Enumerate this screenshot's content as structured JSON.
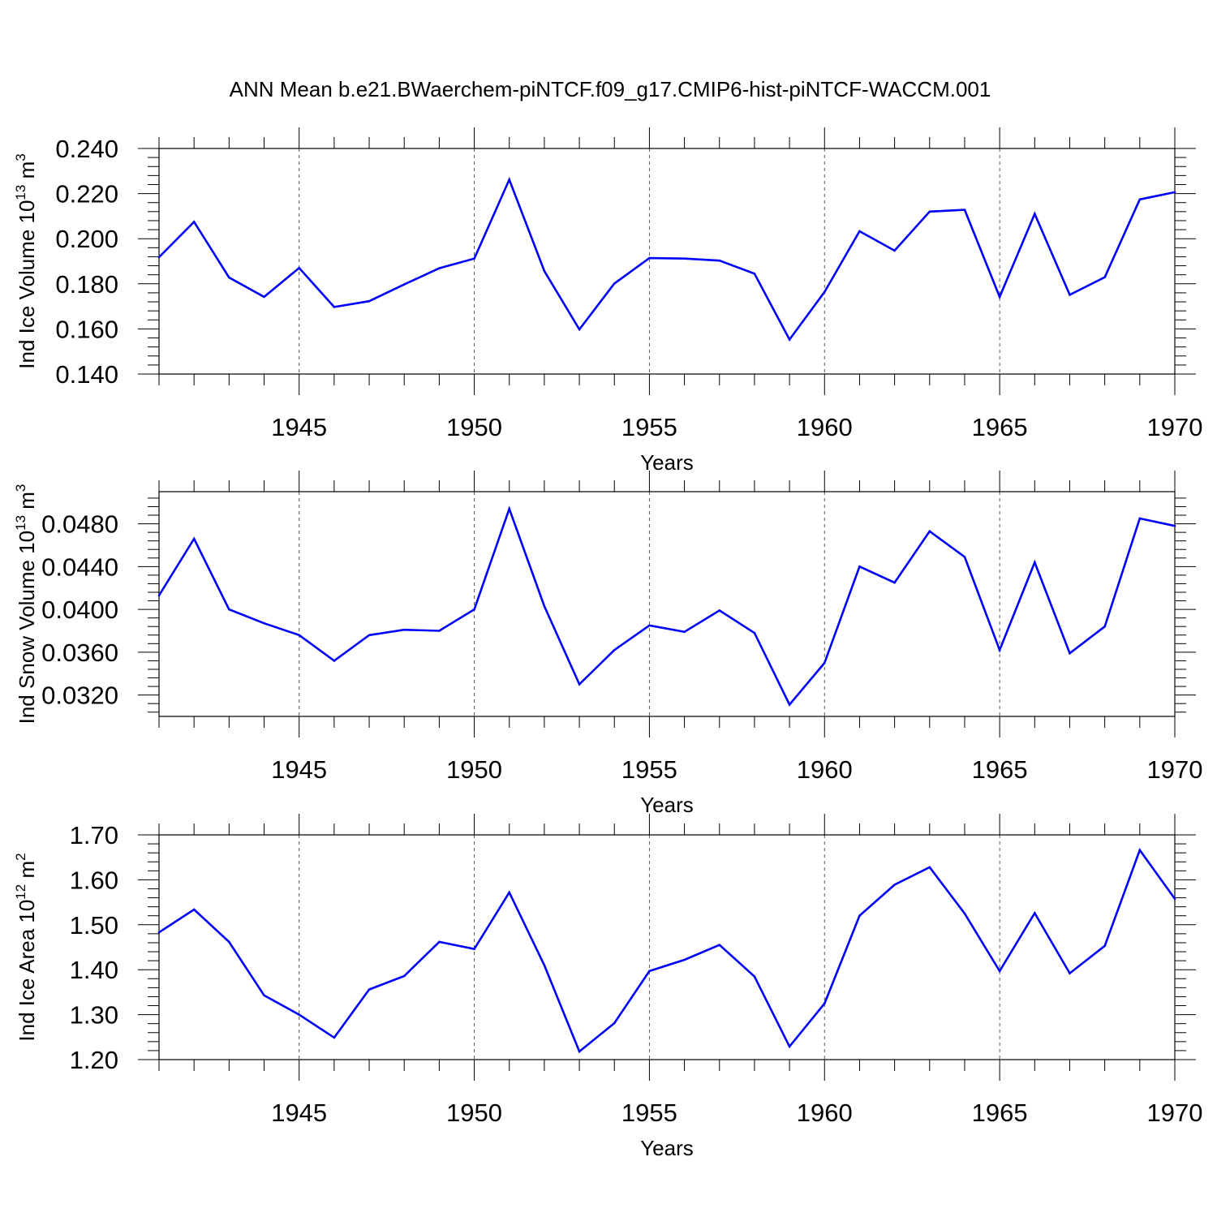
{
  "title": "ANN Mean b.e21.BWaerchem-piNTCF.f09_g17.CMIP6-hist-piNTCF-WACCM.001",
  "line_color": "#0000ff",
  "chart_data": [
    {
      "type": "line",
      "ylabel": "Ind Ice Volume 10",
      "ylabel_exp": "13",
      "ylabel_unit": " m",
      "ylabel_unit_exp": "3",
      "xlabel": "Years",
      "xlim": [
        1941,
        1970
      ],
      "ylim": [
        0.14,
        0.24
      ],
      "yticks": [
        0.14,
        0.16,
        0.18,
        0.2,
        0.22,
        0.24
      ],
      "ytick_labels": [
        "0.140",
        "0.160",
        "0.180",
        "0.200",
        "0.220",
        "0.240"
      ],
      "xticks": [
        1945,
        1950,
        1955,
        1960,
        1965,
        1970
      ],
      "xtick_labels": [
        "1945",
        "1950",
        "1955",
        "1960",
        "1965",
        "1970"
      ],
      "x": [
        1941,
        1942,
        1943,
        1944,
        1945,
        1946,
        1947,
        1948,
        1949,
        1950,
        1951,
        1952,
        1953,
        1954,
        1955,
        1956,
        1957,
        1958,
        1959,
        1960,
        1961,
        1962,
        1963,
        1964,
        1965,
        1966,
        1967,
        1968,
        1969,
        1970
      ],
      "values": [
        0.1918,
        0.2075,
        0.1828,
        0.1742,
        0.187,
        0.1697,
        0.1723,
        0.1797,
        0.1869,
        0.1912,
        0.2262,
        0.1857,
        0.1598,
        0.1801,
        0.1914,
        0.1912,
        0.1903,
        0.1845,
        0.1553,
        0.1764,
        0.2033,
        0.1947,
        0.212,
        0.2128,
        0.1742,
        0.211,
        0.1751,
        0.1829,
        0.2174,
        0.2206
      ]
    },
    {
      "type": "line",
      "ylabel": "Ind Snow Volume 10",
      "ylabel_exp": "13",
      "ylabel_unit": " m",
      "ylabel_unit_exp": "3",
      "xlabel": "Years",
      "xlim": [
        1941,
        1970
      ],
      "ylim": [
        0.03,
        0.051
      ],
      "yticks": [
        0.032,
        0.036,
        0.04,
        0.044,
        0.048
      ],
      "ytick_labels": [
        "0.0320",
        "0.0360",
        "0.0400",
        "0.0440",
        "0.0480"
      ],
      "xticks": [
        1945,
        1950,
        1955,
        1960,
        1965,
        1970
      ],
      "xtick_labels": [
        "1945",
        "1950",
        "1955",
        "1960",
        "1965",
        "1970"
      ],
      "x": [
        1941,
        1942,
        1943,
        1944,
        1945,
        1946,
        1947,
        1948,
        1949,
        1950,
        1951,
        1952,
        1953,
        1954,
        1955,
        1956,
        1957,
        1958,
        1959,
        1960,
        1961,
        1962,
        1963,
        1964,
        1965,
        1966,
        1967,
        1968,
        1969,
        1970
      ],
      "values": [
        0.0413,
        0.0466,
        0.04,
        0.0387,
        0.0376,
        0.0352,
        0.0376,
        0.0381,
        0.038,
        0.04,
        0.0494,
        0.0403,
        0.033,
        0.0362,
        0.0385,
        0.0379,
        0.0399,
        0.0378,
        0.0311,
        0.035,
        0.044,
        0.0425,
        0.0473,
        0.0449,
        0.0362,
        0.0444,
        0.0359,
        0.0384,
        0.0485,
        0.0478
      ]
    },
    {
      "type": "line",
      "ylabel": "Ind Ice Area 10",
      "ylabel_exp": "12",
      "ylabel_unit": " m",
      "ylabel_unit_exp": "2",
      "xlabel": "Years",
      "xlim": [
        1941,
        1970
      ],
      "ylim": [
        1.2,
        1.7
      ],
      "yticks": [
        1.2,
        1.3,
        1.4,
        1.5,
        1.6,
        1.7
      ],
      "ytick_labels": [
        "1.20",
        "1.30",
        "1.40",
        "1.50",
        "1.60",
        "1.70"
      ],
      "xticks": [
        1945,
        1950,
        1955,
        1960,
        1965,
        1970
      ],
      "xtick_labels": [
        "1945",
        "1950",
        "1955",
        "1960",
        "1965",
        "1970"
      ],
      "x": [
        1941,
        1942,
        1943,
        1944,
        1945,
        1946,
        1947,
        1948,
        1949,
        1950,
        1951,
        1952,
        1953,
        1954,
        1955,
        1956,
        1957,
        1958,
        1959,
        1960,
        1961,
        1962,
        1963,
        1964,
        1965,
        1966,
        1967,
        1968,
        1969,
        1970
      ],
      "values": [
        1.483,
        1.534,
        1.462,
        1.343,
        1.3,
        1.249,
        1.356,
        1.386,
        1.462,
        1.446,
        1.572,
        1.41,
        1.218,
        1.281,
        1.397,
        1.422,
        1.455,
        1.385,
        1.229,
        1.325,
        1.52,
        1.589,
        1.628,
        1.525,
        1.397,
        1.526,
        1.392,
        1.453,
        1.666,
        1.558
      ]
    }
  ]
}
